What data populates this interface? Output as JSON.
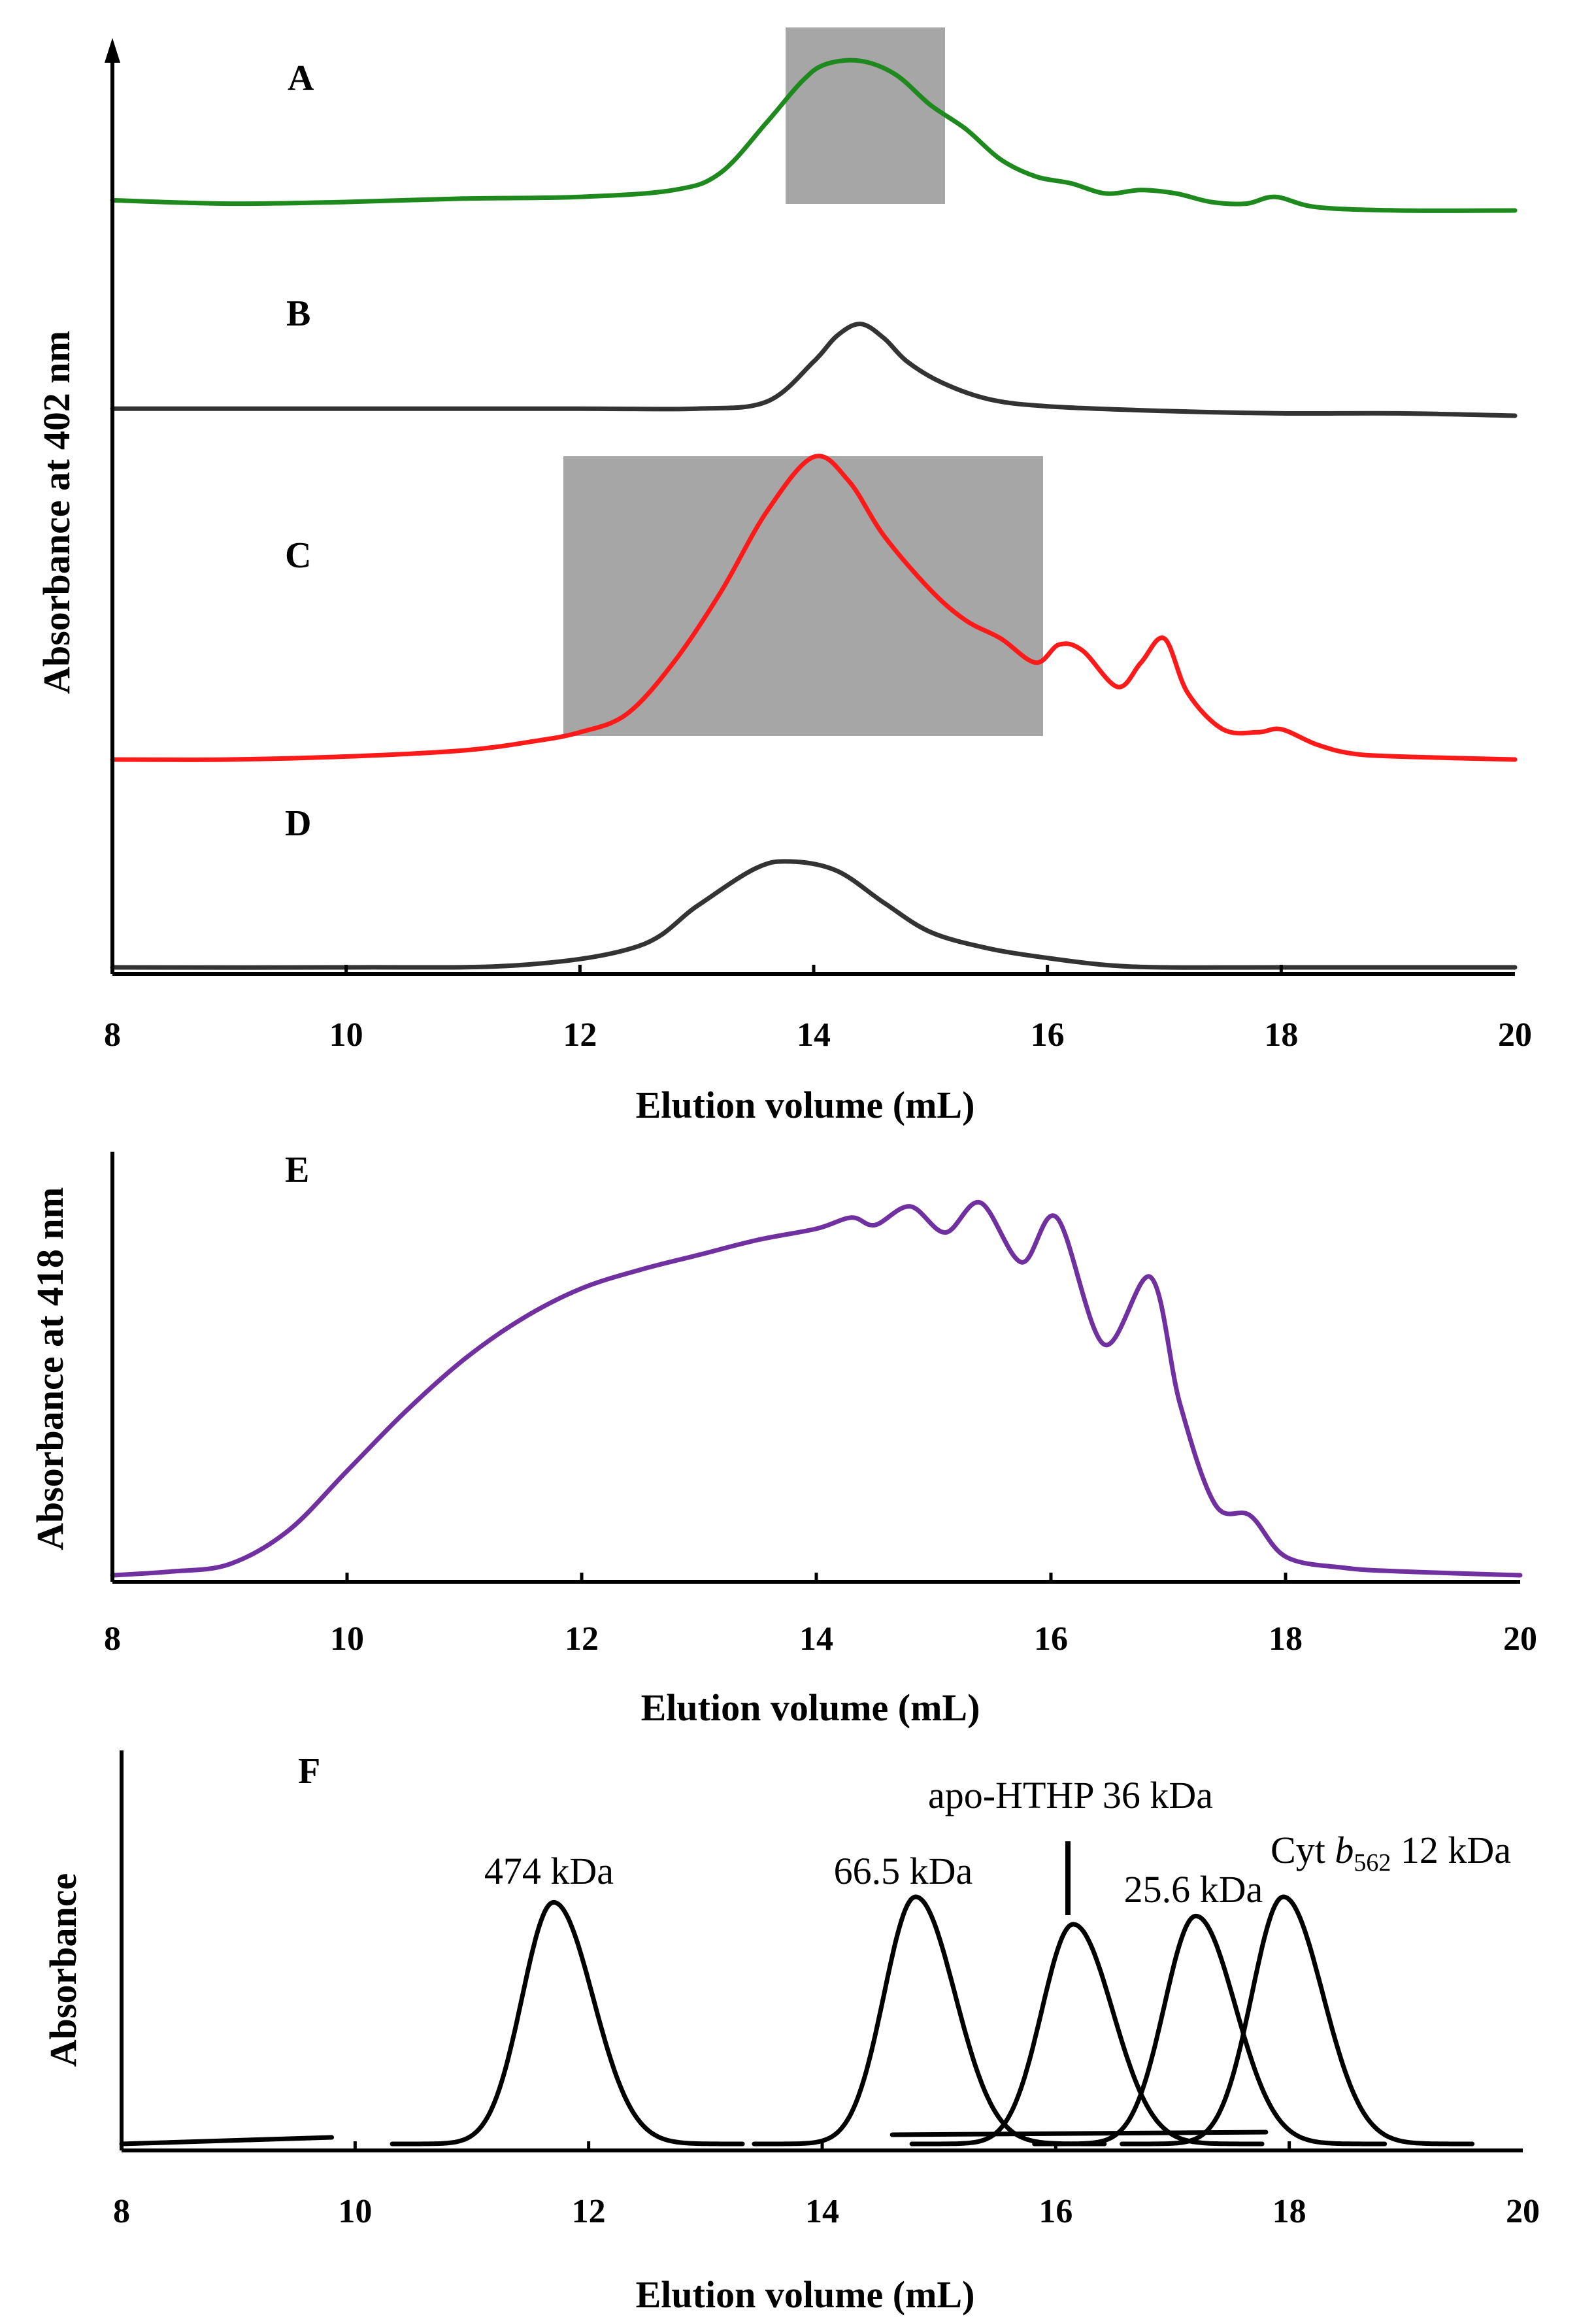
{
  "chart_data": [
    {
      "type": "line",
      "panel": "A-D",
      "xlabel": "Elution volume (mL)",
      "ylabel": "Absorbance at 402 nm",
      "xlim": [
        8,
        20
      ],
      "xticks": [
        8,
        10,
        12,
        14,
        16,
        18,
        20
      ],
      "shaded_regions": [
        {
          "trace": "A",
          "x": [
            13.8,
            15.2
          ]
        },
        {
          "trace": "C",
          "x": [
            11.9,
            16.0
          ]
        }
      ],
      "series": [
        {
          "name": "A",
          "color": "#1e8a1e",
          "x": [
            8.0,
            9.0,
            10.0,
            11.0,
            12.0,
            12.8,
            13.2,
            13.6,
            13.9,
            14.1,
            14.4,
            14.7,
            15.0,
            15.3,
            15.6,
            15.9,
            16.2,
            16.5,
            16.8,
            17.1,
            17.4,
            17.7,
            17.95,
            18.3,
            19.0,
            20.0
          ],
          "y": [
            0.06,
            0.04,
            0.05,
            0.07,
            0.08,
            0.12,
            0.22,
            0.52,
            0.76,
            0.86,
            0.88,
            0.8,
            0.62,
            0.48,
            0.3,
            0.2,
            0.16,
            0.1,
            0.12,
            0.1,
            0.05,
            0.04,
            0.08,
            0.02,
            0.0,
            0.0
          ]
        },
        {
          "name": "B",
          "color": "#333333",
          "x": [
            8.0,
            10.0,
            12.0,
            13.0,
            13.6,
            14.0,
            14.2,
            14.4,
            14.6,
            14.8,
            15.1,
            15.5,
            16.0,
            17.0,
            18.0,
            19.0,
            20.0
          ],
          "y": [
            0.06,
            0.06,
            0.06,
            0.06,
            0.12,
            0.46,
            0.68,
            0.78,
            0.66,
            0.46,
            0.28,
            0.14,
            0.08,
            0.04,
            0.02,
            0.02,
            0.0
          ]
        },
        {
          "name": "C",
          "color": "#ff1a1a",
          "x": [
            8.0,
            9.0,
            10.0,
            11.0,
            11.6,
            12.0,
            12.4,
            12.8,
            13.2,
            13.6,
            14.0,
            14.3,
            14.6,
            15.0,
            15.3,
            15.6,
            15.9,
            16.1,
            16.3,
            16.6,
            16.8,
            17.0,
            17.2,
            17.5,
            17.8,
            18.0,
            18.3,
            18.6,
            19.0,
            20.0
          ],
          "y": [
            0.0,
            0.0,
            0.01,
            0.03,
            0.06,
            0.09,
            0.15,
            0.32,
            0.55,
            0.82,
            1.0,
            0.92,
            0.74,
            0.56,
            0.46,
            0.4,
            0.32,
            0.38,
            0.36,
            0.24,
            0.32,
            0.4,
            0.22,
            0.1,
            0.09,
            0.1,
            0.05,
            0.02,
            0.01,
            0.0
          ]
        },
        {
          "name": "D",
          "color": "#333333",
          "x": [
            8.0,
            10.0,
            11.5,
            12.5,
            13.0,
            13.5,
            13.8,
            14.2,
            14.6,
            15.0,
            15.5,
            16.0,
            16.5,
            17.0,
            18.0,
            20.0
          ],
          "y": [
            0.0,
            0.0,
            0.02,
            0.18,
            0.52,
            0.84,
            0.9,
            0.82,
            0.55,
            0.3,
            0.16,
            0.08,
            0.02,
            0.0,
            0.0,
            0.0
          ]
        }
      ],
      "labels": [
        "A",
        "B",
        "C",
        "D"
      ]
    },
    {
      "type": "line",
      "panel": "E",
      "xlabel": "Elution volume (mL)",
      "ylabel": "Absorbance at 418 nm",
      "xlim": [
        8,
        20
      ],
      "xticks": [
        8,
        10,
        12,
        14,
        16,
        18,
        20
      ],
      "series": [
        {
          "name": "E",
          "color": "#7030a0",
          "x": [
            8.0,
            8.5,
            9.0,
            9.5,
            10.0,
            10.5,
            11.0,
            11.5,
            12.0,
            12.5,
            13.0,
            13.5,
            14.0,
            14.3,
            14.5,
            14.8,
            15.1,
            15.4,
            15.75,
            16.05,
            16.45,
            16.85,
            17.1,
            17.4,
            17.7,
            18.0,
            18.5,
            19.0,
            20.0
          ],
          "y": [
            0.0,
            0.01,
            0.03,
            0.12,
            0.28,
            0.44,
            0.58,
            0.69,
            0.77,
            0.82,
            0.86,
            0.9,
            0.93,
            0.96,
            0.94,
            0.99,
            0.92,
            1.0,
            0.84,
            0.96,
            0.62,
            0.8,
            0.46,
            0.19,
            0.16,
            0.05,
            0.02,
            0.01,
            0.0
          ]
        }
      ],
      "labels": [
        "E"
      ]
    },
    {
      "type": "line",
      "panel": "F",
      "xlabel": "Elution volume (mL)",
      "ylabel": "Absorbance",
      "xlim": [
        8,
        20
      ],
      "xticks": [
        8,
        10,
        12,
        14,
        16,
        18,
        20
      ],
      "series": [
        {
          "name": "474 kDa",
          "center": 11.7,
          "height": 0.88
        },
        {
          "name": "66.5 kDa",
          "center": 14.8,
          "height": 0.9
        },
        {
          "name": "apo-HTHP 36 kDa",
          "center": 16.15,
          "height": 0.8
        },
        {
          "name": "25.6 kDa",
          "center": 17.2,
          "height": 0.83
        },
        {
          "name": "Cyt b562 12 kDa",
          "center": 17.95,
          "height": 0.9
        }
      ],
      "labels": [
        "F"
      ],
      "annotations": {
        "p474": "474 kDa",
        "p665": "66.5 kDa",
        "apo": "apo-HTHP 36 kDa",
        "p256": "25.6 kDa",
        "cyt_prefix": "Cyt ",
        "cyt_b": "b",
        "cyt_sub": "562",
        "cyt_suffix": " 12 kDa"
      }
    }
  ]
}
